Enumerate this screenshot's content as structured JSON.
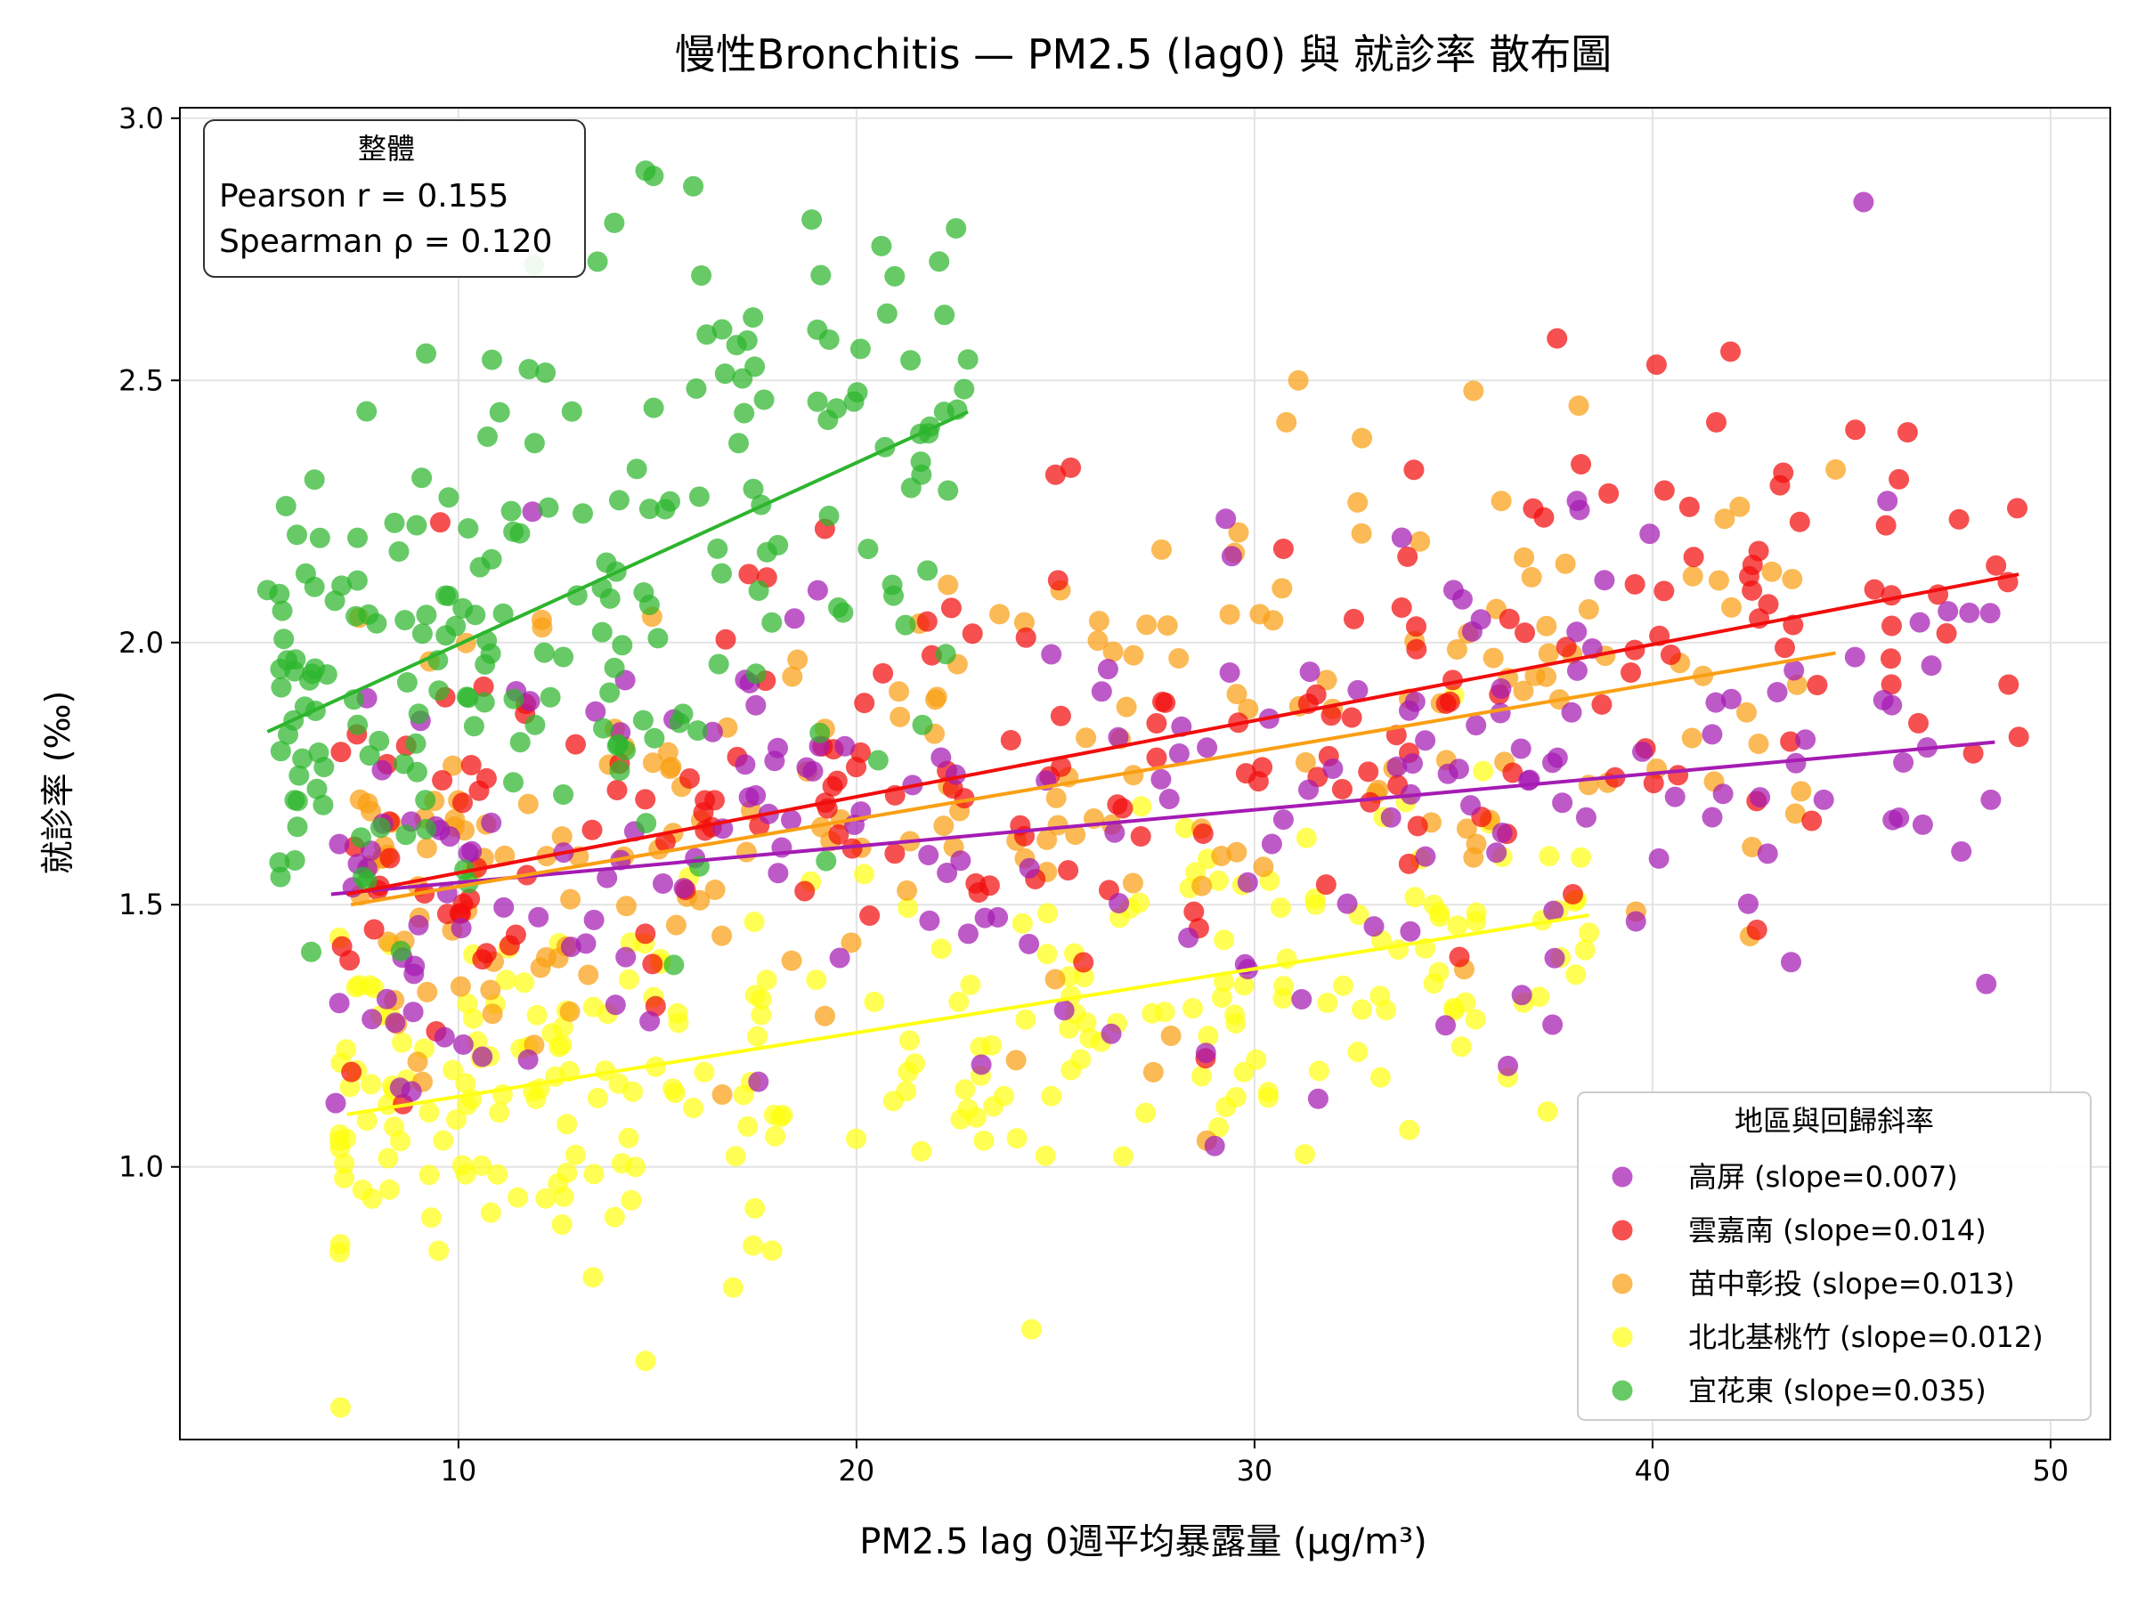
{
  "chart_data": {
    "type": "scatter",
    "title": "慢性Bronchitis — PM2.5 (lag0) 與 就診率 散布圖",
    "xlabel": "PM2.5 lag 0週平均暴露量 (μg/m³)",
    "ylabel": "就診率 (‰)",
    "xlim": [
      3,
      51.5
    ],
    "ylim": [
      0.48,
      3.02
    ],
    "xticks": [
      10,
      20,
      30,
      40,
      50
    ],
    "yticks": [
      1.0,
      1.5,
      2.0,
      2.5,
      3.0
    ],
    "xtick_labels": [
      "10",
      "20",
      "30",
      "40",
      "50"
    ],
    "ytick_labels": [
      "1.0",
      "1.5",
      "2.0",
      "2.5",
      "3.0"
    ],
    "grid": true,
    "stats_box": {
      "title": "整體",
      "pearson": "Pearson r = 0.155",
      "spearman": "Spearman ρ = 0.120"
    },
    "legend": {
      "title": "地區與回歸斜率",
      "placement": "lower-right"
    },
    "series": [
      {
        "name": "高屏",
        "label": "高屏 (slope=0.007)",
        "color": "#a51bb3",
        "slope": 0.007,
        "fit": {
          "x": [
            6.8,
            48.6
          ],
          "y": [
            1.52,
            1.81
          ]
        },
        "n": 190,
        "x_range": [
          6.9,
          48.6
        ],
        "y_center": 1.55,
        "y_spread": 0.22,
        "points": [
          [
            45.3,
            2.84
          ],
          [
            8.2,
            1.32
          ],
          [
            10.6,
            1.21
          ],
          [
            14.2,
            1.4
          ],
          [
            48.5,
            1.7
          ],
          [
            33.7,
            2.2
          ],
          [
            31.6,
            1.13
          ],
          [
            29.0,
            1.04
          ],
          [
            46.9,
            1.8
          ],
          [
            43.6,
            1.77
          ],
          [
            38.1,
            2.27
          ],
          [
            45.9,
            2.27
          ],
          [
            45.8,
            1.89
          ],
          [
            44.3,
            1.7
          ],
          [
            34.8,
            1.27
          ],
          [
            35.0,
            2.1
          ]
        ]
      },
      {
        "name": "雲嘉南",
        "label": "雲嘉南 (slope=0.014)",
        "color": "#f20d0d",
        "slope": 0.014,
        "fit": {
          "x": [
            7.2,
            49.2
          ],
          "y": [
            1.52,
            2.13
          ]
        },
        "n": 190,
        "x_range": [
          7.0,
          49.2
        ],
        "y_center": 1.7,
        "y_spread": 0.22,
        "points": [
          [
            37.6,
            2.58
          ],
          [
            40.1,
            2.53
          ],
          [
            41.6,
            2.42
          ],
          [
            40.3,
            2.29
          ],
          [
            43.2,
            2.3
          ],
          [
            43.7,
            2.23
          ],
          [
            49.2,
            1.82
          ],
          [
            46.0,
            2.09
          ],
          [
            46.0,
            1.92
          ],
          [
            44.0,
            1.66
          ],
          [
            25.0,
            2.32
          ],
          [
            38.2,
            2.34
          ],
          [
            38.0,
            1.52
          ],
          [
            34.1,
            1.65
          ],
          [
            25.7,
            1.39
          ],
          [
            15.2,
            1.62
          ]
        ]
      },
      {
        "name": "苗中彰投",
        "label": "苗中彰投 (slope=0.013)",
        "color": "#fa9f13",
        "slope": 0.013,
        "fit": {
          "x": [
            7.3,
            44.6
          ],
          "y": [
            1.5,
            1.98
          ]
        },
        "n": 200,
        "x_range": [
          7.5,
          45.0
        ],
        "y_center": 1.66,
        "y_spread": 0.2,
        "points": [
          [
            31.1,
            2.5
          ],
          [
            30.8,
            2.42
          ],
          [
            35.5,
            2.48
          ],
          [
            32.7,
            2.39
          ],
          [
            36.2,
            2.27
          ],
          [
            44.6,
            2.33
          ],
          [
            29.6,
            2.21
          ],
          [
            42.5,
            1.61
          ],
          [
            35.5,
            1.59
          ],
          [
            27.9,
            1.25
          ],
          [
            28.8,
            1.05
          ],
          [
            22.3,
            2.11
          ]
        ]
      },
      {
        "name": "北北基桃竹",
        "label": "北北基桃竹 (slope=0.012)",
        "color": "#ffff14",
        "slope": 0.012,
        "fit": {
          "x": [
            7.2,
            38.4
          ],
          "y": [
            1.1,
            1.48
          ]
        },
        "n": 250,
        "x_range": [
          7.0,
          38.5
        ],
        "y_center": 1.27,
        "y_spread": 0.16,
        "points": [
          [
            14.7,
            0.63
          ],
          [
            24.4,
            0.69
          ],
          [
            16.9,
            0.77
          ],
          [
            17.4,
            0.85
          ],
          [
            9.5,
            0.84
          ],
          [
            12.6,
            0.89
          ],
          [
            26.7,
            1.02
          ],
          [
            23.2,
            1.05
          ],
          [
            35.1,
            1.46
          ],
          [
            38.2,
            1.59
          ],
          [
            34.5,
            1.35
          ],
          [
            32.7,
            1.3
          ],
          [
            29.5,
            1.29
          ]
        ]
      },
      {
        "name": "宜花東",
        "label": "宜花東 (slope=0.035)",
        "color": "#2db52d",
        "slope": 0.035,
        "fit": {
          "x": [
            5.2,
            22.8
          ],
          "y": [
            1.83,
            2.44
          ]
        },
        "n": 200,
        "x_range": [
          5.5,
          22.8
        ],
        "y_center": 1.92,
        "y_spread": 0.28,
        "points": [
          [
            14.7,
            2.9
          ],
          [
            14.9,
            2.89
          ],
          [
            15.9,
            2.87
          ],
          [
            22.5,
            2.79
          ],
          [
            11.9,
            2.72
          ],
          [
            16.1,
            2.7
          ],
          [
            17.4,
            2.62
          ],
          [
            22.8,
            2.54
          ],
          [
            20.1,
            2.56
          ],
          [
            22.2,
            2.44
          ],
          [
            22.3,
            2.29
          ],
          [
            20.9,
            2.11
          ],
          [
            5.2,
            2.1
          ],
          [
            6.3,
            1.41
          ],
          [
            6.6,
            1.69
          ]
        ]
      }
    ]
  }
}
